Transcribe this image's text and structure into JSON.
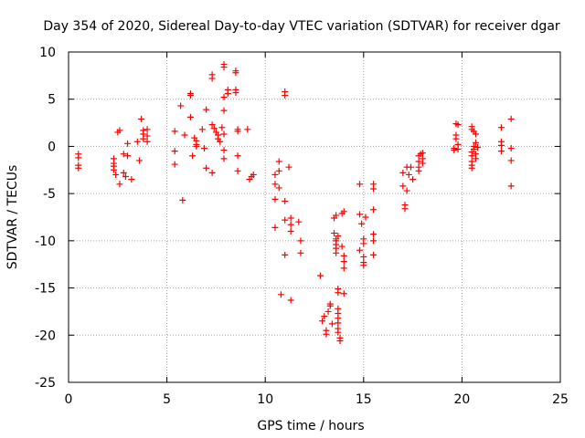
{
  "chart_data": {
    "type": "scatter",
    "title": "Day 354 of 2020, Sidereal Day-to-day VTEC variation (SDTVAR) for receiver dgar",
    "xlabel": "GPS time / hours",
    "ylabel": "SDTVAR / TECUs",
    "xlim": [
      0,
      25
    ],
    "ylim": [
      -25,
      10
    ],
    "xticks": [
      0,
      5,
      10,
      15,
      20,
      25
    ],
    "yticks": [
      -25,
      -20,
      -15,
      -10,
      -5,
      0,
      5,
      10
    ],
    "grid": true,
    "marker": "+",
    "color": "#ff0000",
    "series": [
      {
        "name": "SDTVAR",
        "points": [
          [
            0.5,
            -0.8
          ],
          [
            0.5,
            -1.2
          ],
          [
            0.5,
            -2.0
          ],
          [
            0.5,
            -2.3
          ],
          [
            2.3,
            -1.3
          ],
          [
            2.3,
            -1.8
          ],
          [
            2.3,
            -2.1
          ],
          [
            2.3,
            -2.5
          ],
          [
            2.4,
            -3.0
          ],
          [
            2.5,
            1.5
          ],
          [
            2.6,
            1.7
          ],
          [
            2.6,
            -4.0
          ],
          [
            2.8,
            -2.8
          ],
          [
            2.8,
            -0.8
          ],
          [
            2.9,
            -3.2
          ],
          [
            3.0,
            0.3
          ],
          [
            3.0,
            -1.0
          ],
          [
            3.2,
            -3.5
          ],
          [
            3.5,
            0.5
          ],
          [
            3.6,
            -1.5
          ],
          [
            3.7,
            2.9
          ],
          [
            3.8,
            1.7
          ],
          [
            3.8,
            1.3
          ],
          [
            3.8,
            0.8
          ],
          [
            4.0,
            1.8
          ],
          [
            4.0,
            1.1
          ],
          [
            4.0,
            0.5
          ],
          [
            5.4,
            1.6
          ],
          [
            5.4,
            -0.5
          ],
          [
            5.4,
            -1.9
          ],
          [
            5.7,
            4.3
          ],
          [
            5.8,
            -5.7
          ],
          [
            5.9,
            1.2
          ],
          [
            6.2,
            5.6
          ],
          [
            6.2,
            5.4
          ],
          [
            6.2,
            3.1
          ],
          [
            6.3,
            -1.0
          ],
          [
            6.4,
            0.9
          ],
          [
            6.5,
            0.6
          ],
          [
            6.5,
            0.2
          ],
          [
            6.5,
            0.0
          ],
          [
            6.8,
            1.8
          ],
          [
            6.9,
            -0.2
          ],
          [
            7.0,
            3.9
          ],
          [
            7.0,
            -2.3
          ],
          [
            7.3,
            7.6
          ],
          [
            7.3,
            7.2
          ],
          [
            7.3,
            2.3
          ],
          [
            7.3,
            -2.8
          ],
          [
            7.4,
            1.9
          ],
          [
            7.5,
            1.5
          ],
          [
            7.6,
            1.2
          ],
          [
            7.6,
            0.8
          ],
          [
            7.7,
            0.5
          ],
          [
            7.8,
            2.0
          ],
          [
            7.9,
            8.7
          ],
          [
            7.9,
            8.4
          ],
          [
            7.9,
            5.2
          ],
          [
            7.9,
            3.8
          ],
          [
            7.9,
            1.3
          ],
          [
            7.9,
            -0.4
          ],
          [
            7.9,
            -1.3
          ],
          [
            8.1,
            6.0
          ],
          [
            8.1,
            5.6
          ],
          [
            8.5,
            8.0
          ],
          [
            8.5,
            7.8
          ],
          [
            8.5,
            6.0
          ],
          [
            8.5,
            5.7
          ],
          [
            8.6,
            1.8
          ],
          [
            8.6,
            1.6
          ],
          [
            8.6,
            -1.0
          ],
          [
            8.6,
            -2.6
          ],
          [
            9.1,
            1.8
          ],
          [
            9.2,
            -3.5
          ],
          [
            9.3,
            -3.2
          ],
          [
            9.4,
            -3.0
          ],
          [
            10.5,
            -3.0
          ],
          [
            10.5,
            -4.0
          ],
          [
            10.5,
            -5.6
          ],
          [
            10.5,
            -8.6
          ],
          [
            10.7,
            -1.6
          ],
          [
            10.7,
            -2.6
          ],
          [
            10.7,
            -4.4
          ],
          [
            10.8,
            -15.7
          ],
          [
            11.0,
            5.8
          ],
          [
            11.0,
            5.4
          ],
          [
            11.0,
            -5.8
          ],
          [
            11.0,
            -7.8
          ],
          [
            11.0,
            -11.5
          ],
          [
            11.2,
            -2.2
          ],
          [
            11.3,
            -7.6
          ],
          [
            11.3,
            -8.3
          ],
          [
            11.3,
            -9.0
          ],
          [
            11.3,
            -16.3
          ],
          [
            11.7,
            -8.0
          ],
          [
            11.8,
            -10.0
          ],
          [
            11.8,
            -11.3
          ],
          [
            12.8,
            -13.7
          ],
          [
            12.9,
            -18.5
          ],
          [
            13.0,
            -18.0
          ],
          [
            13.1,
            -19.5
          ],
          [
            13.1,
            -19.9
          ],
          [
            13.2,
            -17.5
          ],
          [
            13.3,
            -16.7
          ],
          [
            13.3,
            -16.9
          ],
          [
            13.4,
            -18.8
          ],
          [
            13.5,
            -7.6
          ],
          [
            13.5,
            -9.2
          ],
          [
            13.6,
            -9.8
          ],
          [
            13.6,
            -10.0
          ],
          [
            13.6,
            -10.4
          ],
          [
            13.6,
            -10.8
          ],
          [
            13.6,
            -11.3
          ],
          [
            13.6,
            -7.3
          ],
          [
            13.7,
            -9.5
          ],
          [
            13.7,
            -15.1
          ],
          [
            13.7,
            -15.5
          ],
          [
            13.7,
            -17.2
          ],
          [
            13.7,
            -17.7
          ],
          [
            13.7,
            -18.2
          ],
          [
            13.7,
            -18.7
          ],
          [
            13.7,
            -19.3
          ],
          [
            13.7,
            -19.7
          ],
          [
            13.8,
            -20.3
          ],
          [
            13.8,
            -20.6
          ],
          [
            13.9,
            -7.1
          ],
          [
            13.9,
            -10.6
          ],
          [
            14.0,
            -11.6
          ],
          [
            14.0,
            -12.2
          ],
          [
            14.0,
            -12.9
          ],
          [
            14.0,
            -15.6
          ],
          [
            14.0,
            -6.9
          ],
          [
            14.8,
            -11.0
          ],
          [
            14.8,
            -4.0
          ],
          [
            14.8,
            -7.2
          ],
          [
            14.9,
            -8.2
          ],
          [
            15.0,
            -9.8
          ],
          [
            15.0,
            -10.3
          ],
          [
            15.0,
            -11.7
          ],
          [
            15.0,
            -12.3
          ],
          [
            15.0,
            -12.6
          ],
          [
            15.1,
            -7.5
          ],
          [
            15.5,
            -4.0
          ],
          [
            15.5,
            -4.5
          ],
          [
            15.5,
            -6.7
          ],
          [
            15.5,
            -9.3
          ],
          [
            15.5,
            -10.0
          ],
          [
            15.5,
            -11.5
          ],
          [
            17.0,
            -2.8
          ],
          [
            17.0,
            -4.2
          ],
          [
            17.1,
            -6.2
          ],
          [
            17.1,
            -6.6
          ],
          [
            17.2,
            -2.2
          ],
          [
            17.2,
            -4.7
          ],
          [
            17.3,
            -3.0
          ],
          [
            17.4,
            -2.2
          ],
          [
            17.5,
            -3.5
          ],
          [
            17.8,
            -1.0
          ],
          [
            17.8,
            -1.6
          ],
          [
            17.8,
            -2.2
          ],
          [
            17.8,
            -2.6
          ],
          [
            17.9,
            -0.8
          ],
          [
            18.0,
            -1.3
          ],
          [
            18.0,
            -1.8
          ],
          [
            18.0,
            -0.7
          ],
          [
            19.6,
            -0.2
          ],
          [
            19.6,
            -0.4
          ],
          [
            19.7,
            0.8
          ],
          [
            19.7,
            2.4
          ],
          [
            19.7,
            1.2
          ],
          [
            19.8,
            2.3
          ],
          [
            19.8,
            0.2
          ],
          [
            19.8,
            -0.3
          ],
          [
            20.5,
            2.1
          ],
          [
            20.5,
            1.8
          ],
          [
            20.5,
            -0.6
          ],
          [
            20.5,
            -1.0
          ],
          [
            20.5,
            -1.6
          ],
          [
            20.5,
            -2.0
          ],
          [
            20.5,
            -2.3
          ],
          [
            20.6,
            1.6
          ],
          [
            20.6,
            0.0
          ],
          [
            20.6,
            -0.3
          ],
          [
            20.7,
            1.3
          ],
          [
            20.7,
            0.4
          ],
          [
            20.7,
            -0.8
          ],
          [
            20.7,
            -1.3
          ],
          [
            20.8,
            -0.1
          ],
          [
            22.0,
            2.0
          ],
          [
            22.0,
            0.5
          ],
          [
            22.0,
            0.1
          ],
          [
            22.0,
            -0.5
          ],
          [
            22.5,
            2.9
          ],
          [
            22.5,
            -0.2
          ],
          [
            22.5,
            -1.5
          ],
          [
            22.5,
            -4.2
          ]
        ]
      }
    ]
  }
}
